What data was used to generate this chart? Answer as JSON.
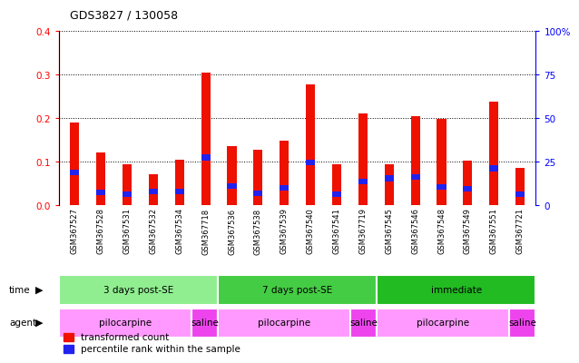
{
  "title": "GDS3827 / 130058",
  "samples": [
    "GSM367527",
    "GSM367528",
    "GSM367531",
    "GSM367532",
    "GSM367534",
    "GSM367718",
    "GSM367536",
    "GSM367538",
    "GSM367539",
    "GSM367540",
    "GSM367541",
    "GSM367719",
    "GSM367545",
    "GSM367546",
    "GSM367548",
    "GSM367549",
    "GSM367551",
    "GSM367721"
  ],
  "red_values": [
    0.19,
    0.122,
    0.095,
    0.072,
    0.105,
    0.305,
    0.135,
    0.127,
    0.148,
    0.278,
    0.095,
    0.21,
    0.095,
    0.205,
    0.198,
    0.102,
    0.237,
    0.085
  ],
  "blue_values": [
    0.075,
    0.03,
    0.025,
    0.032,
    0.032,
    0.11,
    0.045,
    0.028,
    0.04,
    0.098,
    0.025,
    0.055,
    0.062,
    0.065,
    0.042,
    0.038,
    0.085,
    0.025
  ],
  "blue_heights": [
    0.012,
    0.012,
    0.012,
    0.012,
    0.012,
    0.012,
    0.012,
    0.012,
    0.012,
    0.012,
    0.012,
    0.012,
    0.012,
    0.012,
    0.012,
    0.012,
    0.012,
    0.012
  ],
  "ylim_left": [
    0,
    0.4
  ],
  "ylim_right": [
    0,
    100
  ],
  "yticks_left": [
    0,
    0.1,
    0.2,
    0.3,
    0.4
  ],
  "yticks_right": [
    0,
    25,
    50,
    75,
    100
  ],
  "time_groups": [
    {
      "label": "3 days post-SE",
      "start": 0,
      "end": 6,
      "color": "#90EE90"
    },
    {
      "label": "7 days post-SE",
      "start": 6,
      "end": 12,
      "color": "#44CC44"
    },
    {
      "label": "immediate",
      "start": 12,
      "end": 18,
      "color": "#22BB22"
    }
  ],
  "agent_groups": [
    {
      "label": "pilocarpine",
      "start": 0,
      "end": 5,
      "color": "#FF99FF"
    },
    {
      "label": "saline",
      "start": 5,
      "end": 6,
      "color": "#EE44EE"
    },
    {
      "label": "pilocarpine",
      "start": 6,
      "end": 11,
      "color": "#FF99FF"
    },
    {
      "label": "saline",
      "start": 11,
      "end": 12,
      "color": "#EE44EE"
    },
    {
      "label": "pilocarpine",
      "start": 12,
      "end": 17,
      "color": "#FF99FF"
    },
    {
      "label": "saline",
      "start": 17,
      "end": 18,
      "color": "#EE44EE"
    }
  ],
  "bar_width": 0.35,
  "red_color": "#EE1100",
  "blue_color": "#2222EE",
  "legend_red": "transformed count",
  "legend_blue": "percentile rank within the sample"
}
